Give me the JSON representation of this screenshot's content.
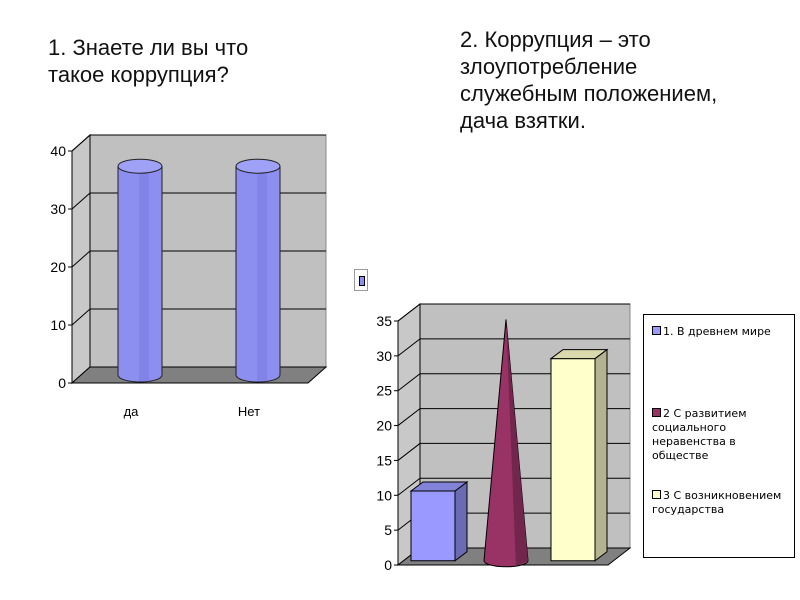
{
  "q1": {
    "text": "1. Знаете ли вы что\nтакое коррупция?"
  },
  "q2": {
    "text": "2. Коррупция – это\nзлоупотребление\nслужебным положением,\nдача взятки."
  },
  "chart_data": [
    {
      "type": "bar",
      "style": "3d-cylinder",
      "categories": [
        "да",
        "Нет"
      ],
      "values": [
        36,
        36
      ],
      "ylim": [
        0,
        40
      ],
      "yticks": [
        0,
        10,
        20,
        30,
        40
      ],
      "grid": true,
      "colors": [
        "#8c8ef0"
      ]
    },
    {
      "type": "bar",
      "style": "3d-mixed",
      "series": [
        {
          "name": "1. В древнем мире",
          "values": [
            10
          ],
          "shape": "box",
          "color": "#9999ff"
        },
        {
          "name": "2 С развитием социального неравенства в обществе",
          "values": [
            34
          ],
          "shape": "cone",
          "color": "#993366"
        },
        {
          "name": "3 С возникновением государства",
          "values": [
            29
          ],
          "shape": "box",
          "color": "#ffffcc"
        }
      ],
      "ylim": [
        0,
        35
      ],
      "yticks": [
        0,
        5,
        10,
        15,
        20,
        25,
        30,
        35
      ],
      "grid": true,
      "legend": "right"
    }
  ]
}
